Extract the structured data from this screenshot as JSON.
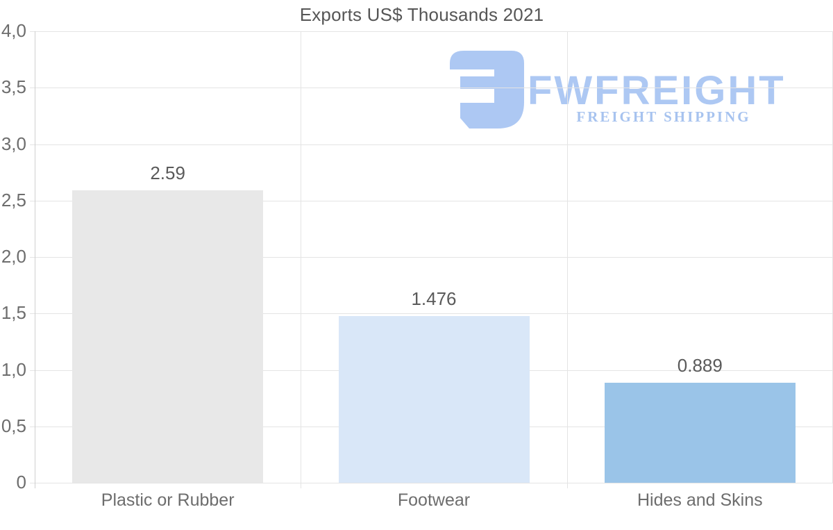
{
  "title": "Exports US$ Thousands 2021",
  "watermark": {
    "brand": "FWFREIGHT",
    "tagline": "FREIGHT SHIPPING",
    "color": "#adc8f3"
  },
  "chart_data": {
    "type": "bar",
    "title": "Exports US$ Thousands 2021",
    "categories": [
      "Plastic or Rubber",
      "Footwear",
      "Hides and Skins"
    ],
    "values": [
      2.59,
      1.476,
      0.889
    ],
    "value_labels": [
      "2.59",
      "1.476",
      "0.889"
    ],
    "bar_colors": [
      "#e8e8e8",
      "#d9e7f8",
      "#9ac4e8"
    ],
    "xlabel": "",
    "ylabel": "",
    "ylim": [
      0,
      4
    ],
    "y_tick_step": 0.5,
    "y_tick_labels": [
      "0",
      "0,5",
      "1,0",
      "1,5",
      "2,0",
      "2,5",
      "3,0",
      "3,5",
      "4,0"
    ],
    "grid": true,
    "legend": false,
    "decimal_separator_axis": ",",
    "decimal_separator_labels": "."
  }
}
